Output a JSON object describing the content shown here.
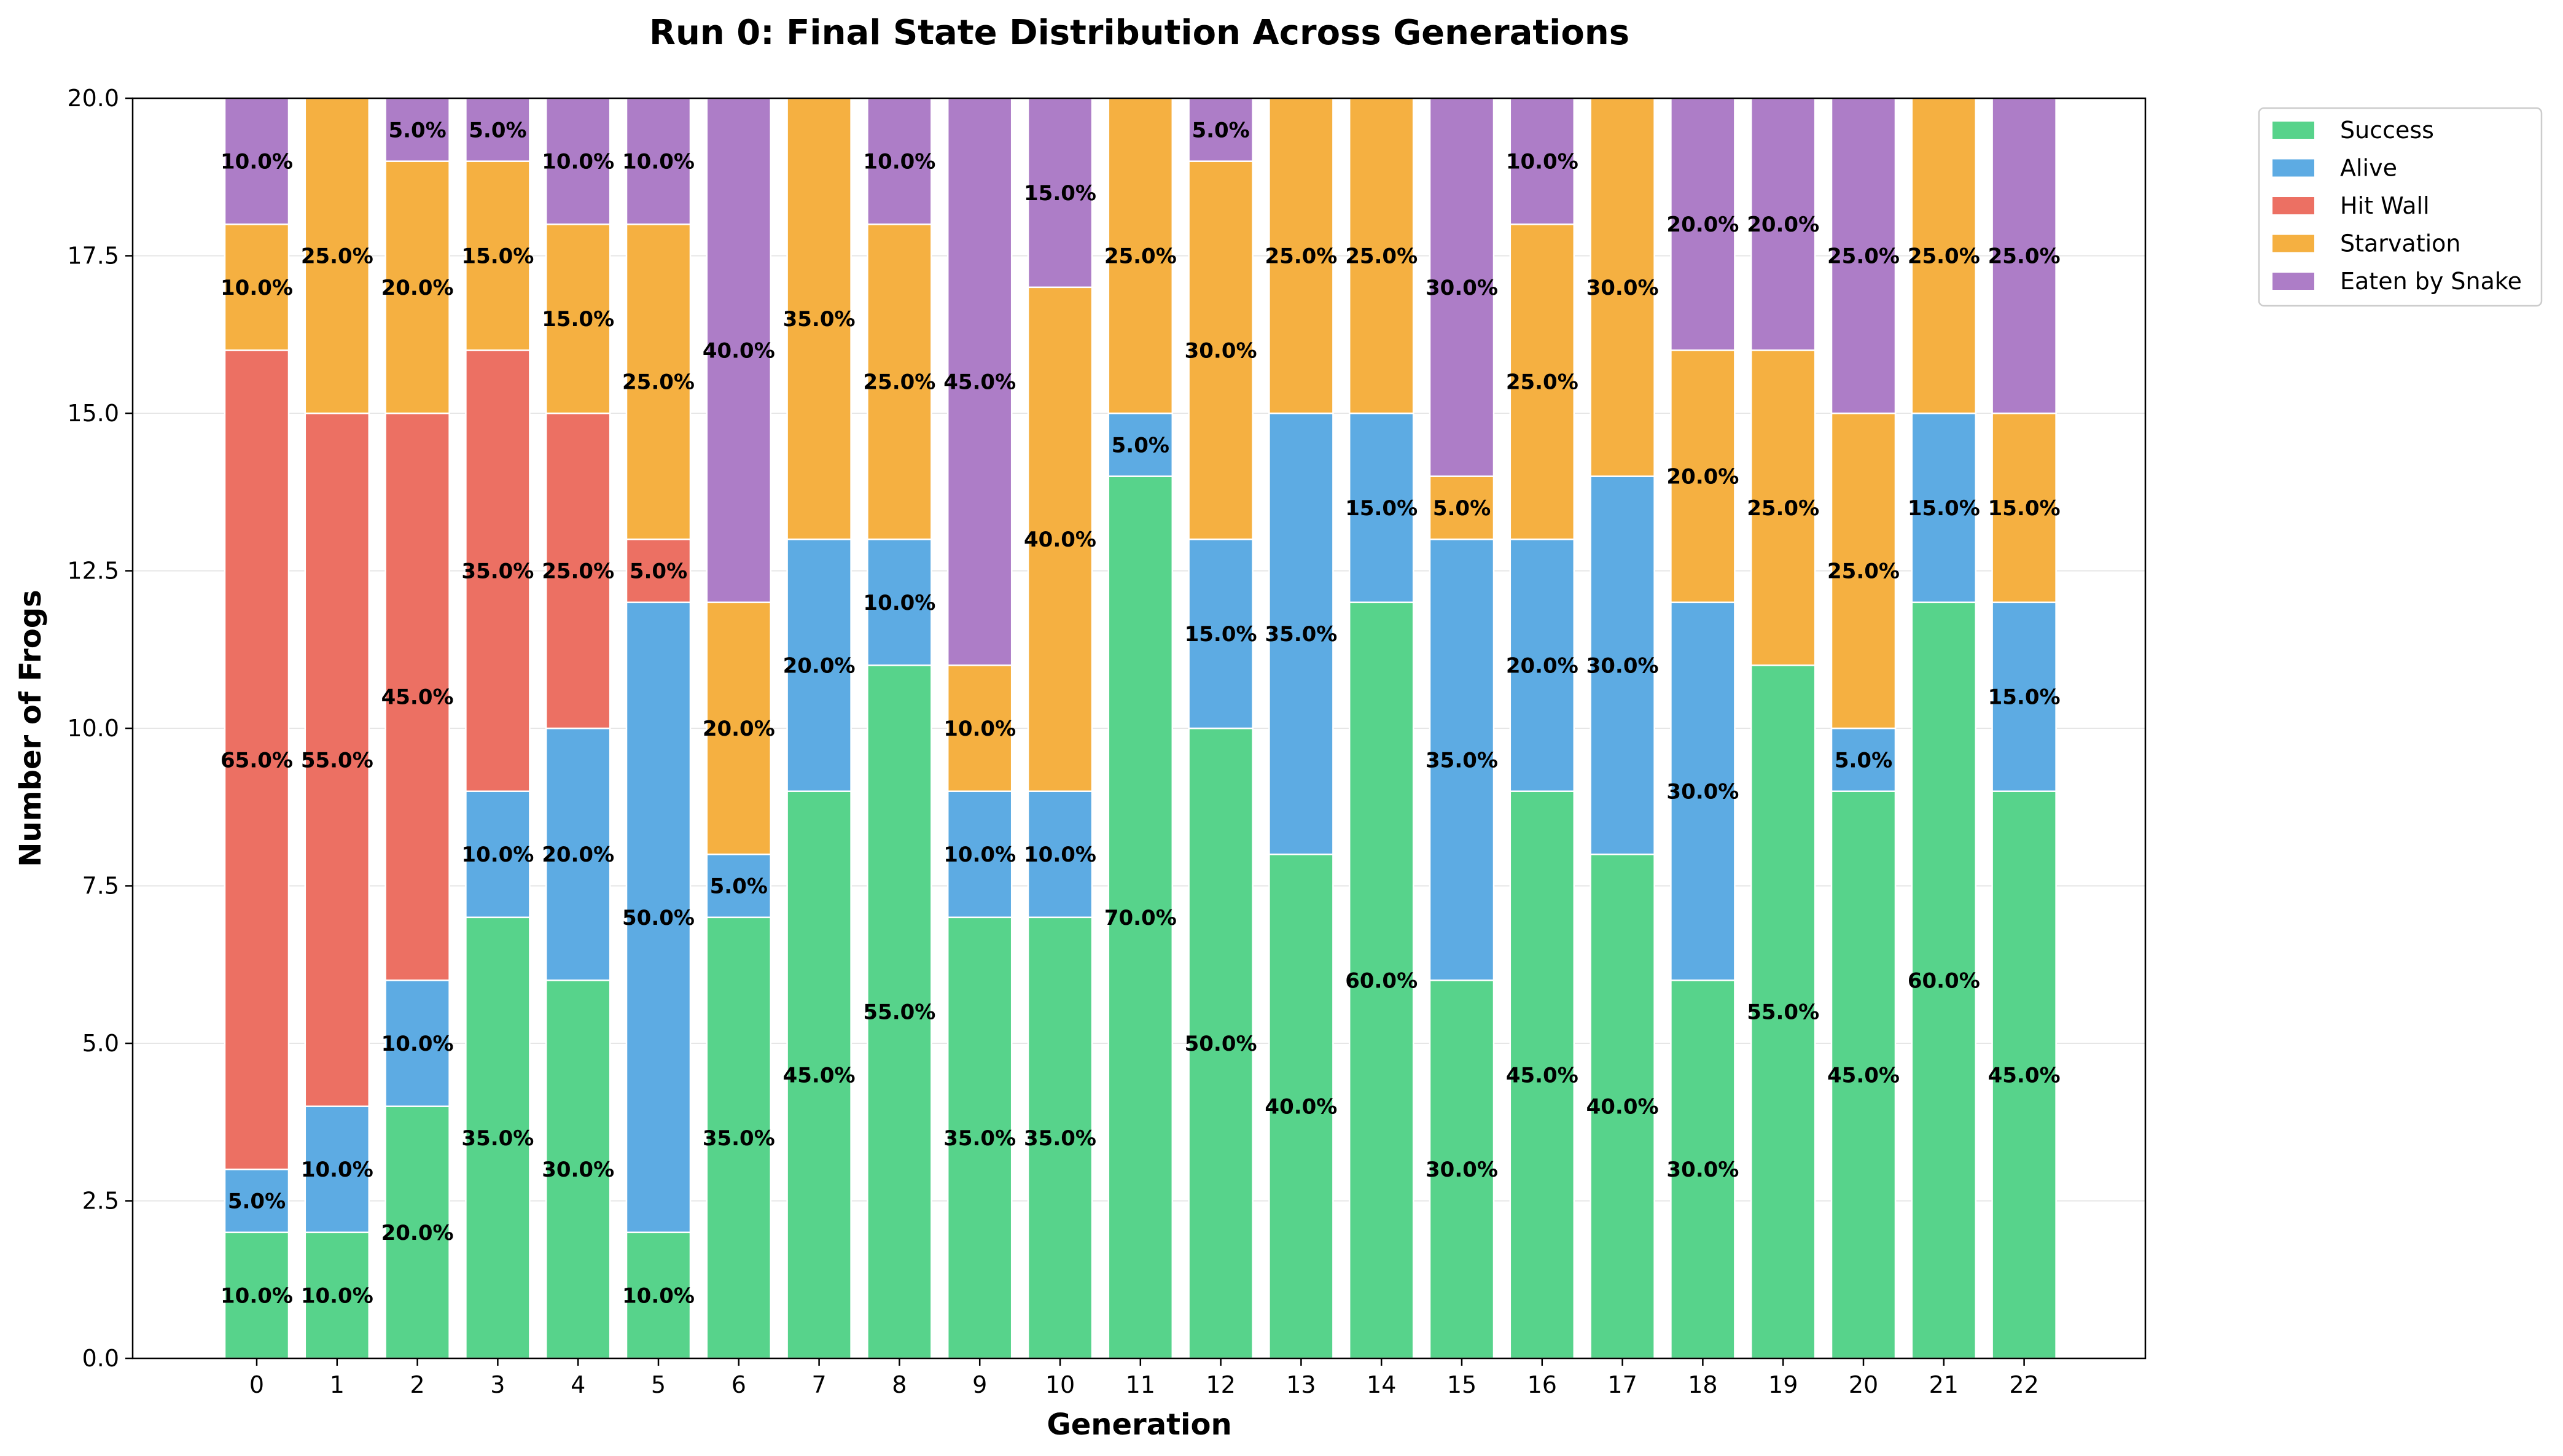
{
  "chart_data": {
    "type": "bar",
    "stacked": true,
    "title": "Run 0: Final State Distribution Across Generations",
    "xlabel": "Generation",
    "ylabel": "Number of Frogs",
    "ylim": [
      0,
      20
    ],
    "yticks": [
      "0.0",
      "2.5",
      "5.0",
      "7.5",
      "10.0",
      "12.5",
      "15.0",
      "17.5",
      "20.0"
    ],
    "grid": "y",
    "legend": "outside top-right",
    "categories": [
      "0",
      "1",
      "2",
      "3",
      "4",
      "5",
      "6",
      "7",
      "8",
      "9",
      "10",
      "11",
      "12",
      "13",
      "14",
      "15",
      "16",
      "17",
      "18",
      "19",
      "20",
      "21",
      "22"
    ],
    "series": [
      {
        "name": "Success",
        "color": "#57d38b",
        "values": [
          2,
          2,
          4,
          7,
          6,
          2,
          7,
          9,
          11,
          7,
          7,
          14,
          10,
          8,
          12,
          6,
          9,
          8,
          6,
          11,
          9,
          12,
          9
        ]
      },
      {
        "name": "Alive",
        "color": "#5dabe3",
        "values": [
          1,
          2,
          2,
          2,
          4,
          10,
          1,
          4,
          2,
          2,
          2,
          1,
          3,
          7,
          3,
          7,
          4,
          6,
          6,
          0,
          1,
          3,
          3
        ]
      },
      {
        "name": "Hit Wall",
        "color": "#ec7063",
        "values": [
          13,
          11,
          9,
          7,
          5,
          1,
          0,
          0,
          0,
          0,
          0,
          0,
          0,
          0,
          0,
          0,
          0,
          0,
          0,
          0,
          0,
          0,
          0
        ]
      },
      {
        "name": "Starvation",
        "color": "#f5b041",
        "values": [
          2,
          5,
          4,
          3,
          3,
          5,
          4,
          7,
          5,
          2,
          8,
          5,
          6,
          5,
          5,
          1,
          5,
          6,
          4,
          5,
          5,
          5,
          3
        ]
      },
      {
        "name": "Eaten by Snake",
        "color": "#ad7dc7",
        "values": [
          2,
          0,
          1,
          1,
          2,
          2,
          8,
          0,
          2,
          9,
          3,
          0,
          1,
          0,
          0,
          6,
          2,
          0,
          4,
          4,
          5,
          0,
          5
        ]
      }
    ]
  }
}
